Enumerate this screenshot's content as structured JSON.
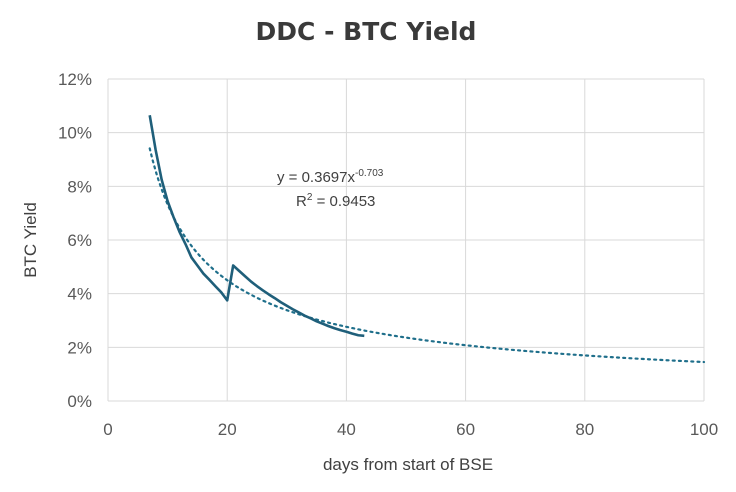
{
  "chart_data": {
    "type": "line",
    "title": "DDC - BTC Yield",
    "xlabel": "days from start of BSE",
    "ylabel": "BTC Yield",
    "xlim": [
      0,
      100
    ],
    "ylim": [
      0,
      0.12
    ],
    "x_ticks": [
      0,
      20,
      40,
      60,
      80,
      100
    ],
    "y_ticks": [
      0,
      0.02,
      0.04,
      0.06,
      0.08,
      0.1,
      0.12
    ],
    "x_tick_labels": [
      "0",
      "20",
      "40",
      "60",
      "80",
      "100"
    ],
    "y_tick_labels": [
      "0%",
      "2%",
      "4%",
      "6%",
      "8%",
      "10%",
      "12%"
    ],
    "grid": true,
    "series": [
      {
        "points": [
          [
            7,
            0.1065
          ],
          [
            8,
            0.0935
          ],
          [
            9,
            0.0825
          ],
          [
            10,
            0.0745
          ],
          [
            11,
            0.0685
          ],
          [
            12,
            0.063
          ],
          [
            13,
            0.0585
          ],
          [
            14,
            0.0535
          ],
          [
            15,
            0.0505
          ],
          [
            16,
            0.0475
          ],
          [
            17,
            0.0452
          ],
          [
            18,
            0.0428
          ],
          [
            19,
            0.0405
          ],
          [
            20,
            0.0375
          ],
          [
            21,
            0.0505
          ],
          [
            22,
            0.0485
          ],
          [
            23,
            0.0465
          ],
          [
            24,
            0.0445
          ],
          [
            25,
            0.0428
          ],
          [
            26,
            0.0412
          ],
          [
            27,
            0.0397
          ],
          [
            28,
            0.0383
          ],
          [
            29,
            0.0368
          ],
          [
            30,
            0.0355
          ],
          [
            31,
            0.0342
          ],
          [
            32,
            0.033
          ],
          [
            33,
            0.0318
          ],
          [
            34,
            0.0308
          ],
          [
            35,
            0.0297
          ],
          [
            36,
            0.0288
          ],
          [
            37,
            0.0279
          ],
          [
            38,
            0.0271
          ],
          [
            39,
            0.0264
          ],
          [
            40,
            0.0258
          ],
          [
            41,
            0.0251
          ],
          [
            42,
            0.0245
          ],
          [
            43,
            0.0243
          ]
        ],
        "color": "#1f5f7a"
      }
    ],
    "trendline": {
      "type": "power",
      "coefficient": 0.3697,
      "exponent": -0.703,
      "x_range": [
        7,
        100
      ],
      "color": "#1f6f8b",
      "equation_prefix": "y = 0.3697x",
      "equation_exponent": "-0.703",
      "r2_prefix": "R",
      "r2_sup": "2",
      "r2_value": " = 0.9453"
    }
  }
}
